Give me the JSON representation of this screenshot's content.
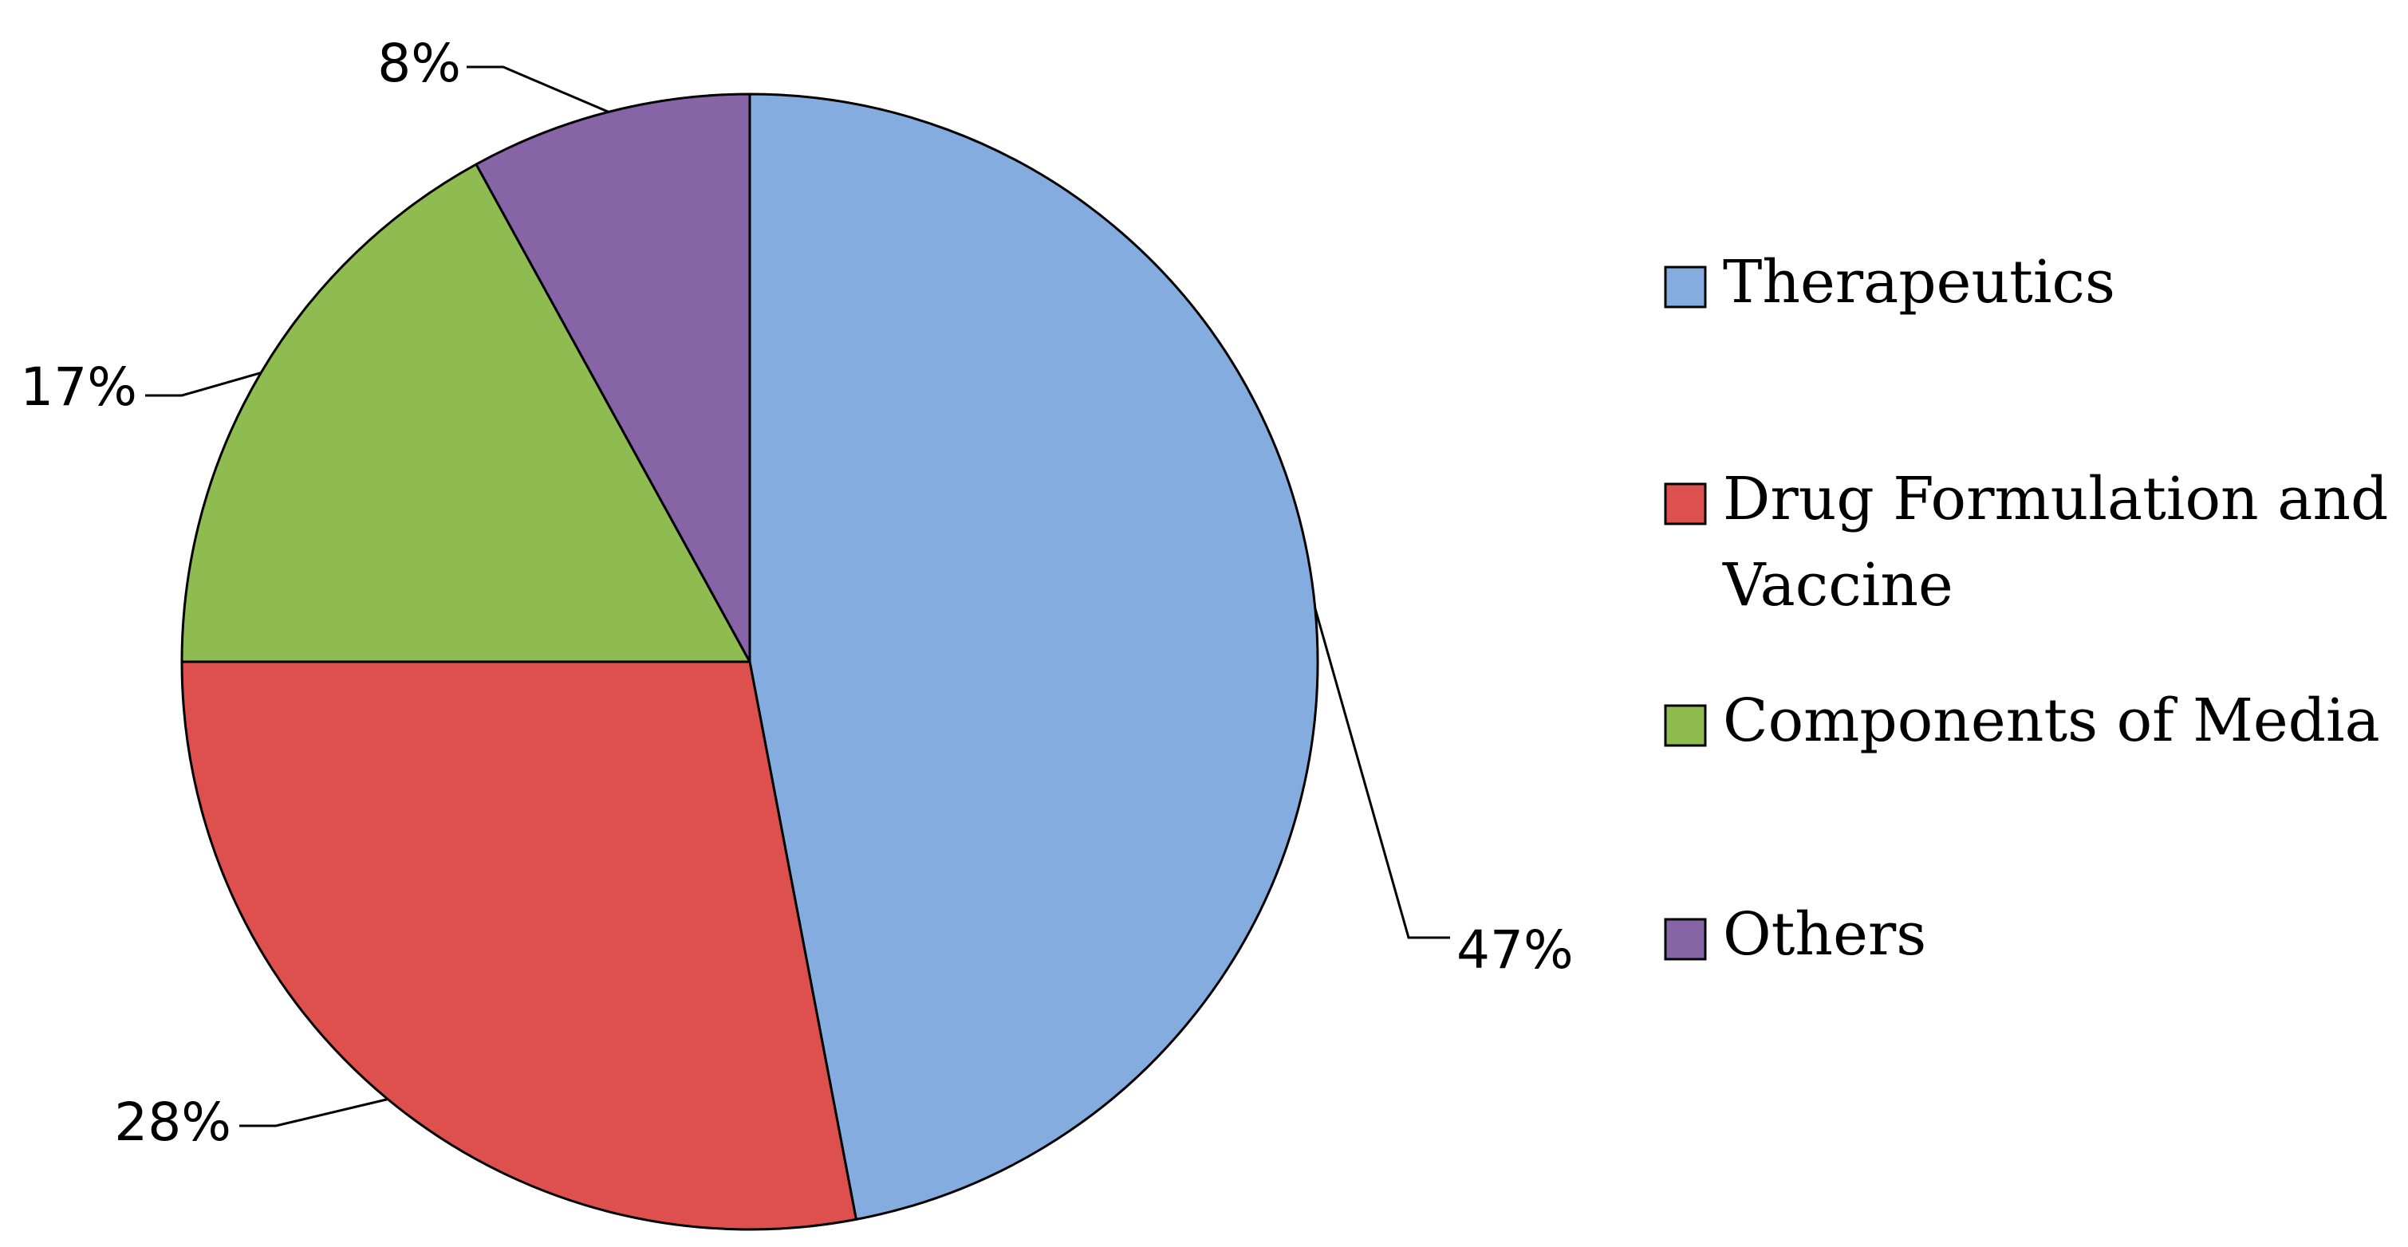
{
  "chart_data": {
    "type": "pie",
    "title": "",
    "slices": [
      {
        "label": "Therapeutics",
        "value": 47,
        "value_label": "47%",
        "color": "#85ACDF"
      },
      {
        "label": "Drug Formulation and Vaccine",
        "value": 28,
        "value_label": "28%",
        "color": "#DD504D"
      },
      {
        "label": "Components of Media",
        "value": 17,
        "value_label": "17%",
        "color": "#8FBC50"
      },
      {
        "label": "Others",
        "value": 8,
        "value_label": "8%",
        "color": "#8764A6"
      }
    ],
    "legend": {
      "position": "right",
      "entries": [
        "Therapeutics",
        "Drug Formulation and Vaccine",
        "Components of Media",
        "Others"
      ]
    },
    "start_angle": "12 o'clock",
    "direction": "clockwise",
    "slice_border": "#000000"
  }
}
